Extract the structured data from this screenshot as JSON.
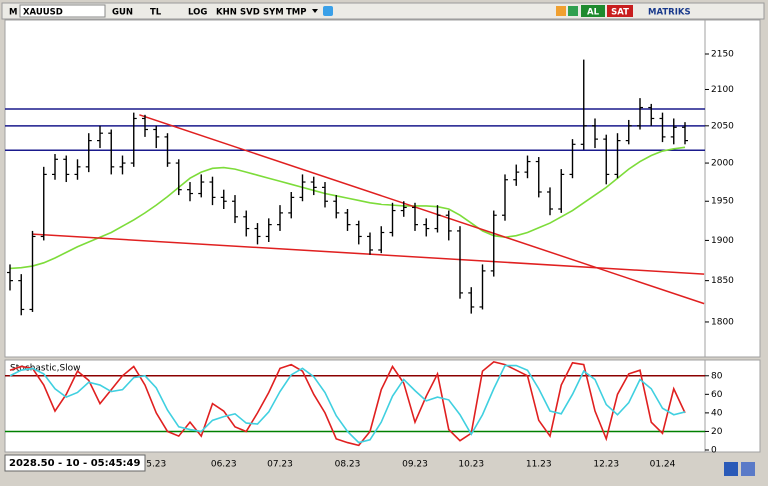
{
  "toolbar": {
    "symbol_prefix": "M",
    "symbol": "XAUUSD",
    "buttons": [
      "GUN",
      "TL",
      "LOG",
      "KHN",
      "SVD",
      "SYM",
      "TMP"
    ],
    "buy": "AL",
    "sell": "SAT",
    "brand": "MATRIKS"
  },
  "status": "2028.50 - 10 - 05:45:49",
  "chart_data": [
    {
      "type": "ohlc",
      "ylog": true,
      "ylim": [
        1761,
        2199
      ],
      "yticks": [
        1800,
        1850,
        1900,
        1950,
        2000,
        2050,
        2100,
        2150
      ],
      "color": "#000000",
      "categories": [
        null,
        null,
        null,
        null,
        null,
        null,
        null,
        null,
        null,
        null,
        null,
        null,
        null,
        "5.23",
        null,
        null,
        null,
        null,
        null,
        "06.23",
        null,
        null,
        null,
        null,
        "07.23",
        null,
        null,
        null,
        null,
        null,
        "08.23",
        null,
        null,
        null,
        null,
        null,
        "09.23",
        null,
        null,
        null,
        null,
        "10.23",
        null,
        null,
        null,
        null,
        null,
        "11.23",
        null,
        null,
        null,
        null,
        null,
        "12.23",
        null,
        null,
        null,
        null,
        "01.24",
        null,
        null
      ],
      "open": [
        1860,
        1850,
        1815,
        1905,
        1985,
        2005,
        1985,
        1995,
        2030,
        2040,
        1995,
        2000,
        2060,
        2045,
        2035,
        2000,
        1965,
        1960,
        1975,
        1955,
        1950,
        1930,
        1915,
        1905,
        1920,
        1935,
        1955,
        1975,
        1968,
        1950,
        1935,
        1920,
        1905,
        1888,
        1910,
        1938,
        1942,
        1920,
        1915,
        1932,
        1912,
        1835,
        1818,
        1862,
        1932,
        1978,
        1988,
        2002,
        1962,
        1940,
        1985,
        2025,
        2050,
        2032,
        1985,
        2030,
        2050,
        2075,
        2060,
        2035,
        2048
      ],
      "high": [
        1870,
        1858,
        1912,
        1995,
        2012,
        2010,
        2005,
        2040,
        2050,
        2045,
        2010,
        2068,
        2065,
        2050,
        2040,
        2005,
        1975,
        1985,
        1982,
        1965,
        1958,
        1938,
        1922,
        1928,
        1945,
        1962,
        1985,
        1982,
        1975,
        1958,
        1940,
        1925,
        1910,
        1918,
        1948,
        1950,
        1948,
        1928,
        1945,
        1938,
        1918,
        1842,
        1870,
        1938,
        1985,
        1998,
        2010,
        2008,
        1968,
        1992,
        2032,
        2142,
        2060,
        2038,
        2040,
        2058,
        2088,
        2080,
        2068,
        2060,
        2055
      ],
      "low": [
        1838,
        1808,
        1812,
        1900,
        1978,
        1975,
        1978,
        1988,
        2020,
        1985,
        1985,
        1995,
        2035,
        2020,
        1995,
        1958,
        1950,
        1955,
        1945,
        1940,
        1922,
        1905,
        1895,
        1898,
        1912,
        1928,
        1950,
        1958,
        1942,
        1928,
        1912,
        1895,
        1882,
        1884,
        1905,
        1930,
        1912,
        1905,
        1910,
        1900,
        1828,
        1810,
        1815,
        1855,
        1925,
        1970,
        1980,
        1955,
        1932,
        1935,
        1980,
        2018,
        2020,
        1972,
        1980,
        2025,
        2045,
        2050,
        2028,
        2025,
        2025
      ],
      "close": [
        1850,
        1815,
        1905,
        1985,
        2005,
        1985,
        1995,
        2030,
        2040,
        1995,
        2000,
        2060,
        2045,
        2035,
        2000,
        1965,
        1960,
        1975,
        1955,
        1950,
        1930,
        1915,
        1905,
        1920,
        1935,
        1955,
        1975,
        1968,
        1950,
        1935,
        1920,
        1905,
        1888,
        1910,
        1938,
        1942,
        1920,
        1915,
        1932,
        1912,
        1835,
        1818,
        1862,
        1932,
        1978,
        1988,
        2002,
        1962,
        1940,
        1985,
        2025,
        2050,
        2032,
        1985,
        2030,
        2050,
        2075,
        2060,
        2035,
        2048,
        2030
      ],
      "moving_average": {
        "color": "#7ddc3a",
        "values": [
          1865,
          1866,
          1868,
          1872,
          1878,
          1885,
          1892,
          1898,
          1904,
          1910,
          1918,
          1926,
          1935,
          1945,
          1956,
          1968,
          1980,
          1988,
          1993,
          1994,
          1992,
          1988,
          1984,
          1980,
          1976,
          1972,
          1968,
          1964,
          1960,
          1957,
          1954,
          1951,
          1948,
          1946,
          1945,
          1944,
          1944,
          1944,
          1943,
          1940,
          1932,
          1922,
          1912,
          1906,
          1904,
          1906,
          1910,
          1916,
          1922,
          1930,
          1938,
          1948,
          1958,
          1968,
          1980,
          1992,
          2002,
          2010,
          2016,
          2019,
          2021
        ]
      },
      "levels": {
        "color": "#1a1a8c",
        "values": [
          2073,
          2050,
          2017
        ]
      },
      "trendlines": [
        {
          "color": "#e02020",
          "x": [
            11.5,
            61.7
          ],
          "values": [
            2065,
            1822
          ]
        },
        {
          "color": "#e02020",
          "x": [
            2,
            61.7
          ],
          "values": [
            1908,
            1858
          ]
        }
      ]
    },
    {
      "type": "line",
      "title": "Stochastic,Slow",
      "ylim": [
        0,
        97
      ],
      "yticks": [
        0,
        20,
        40,
        60,
        80
      ],
      "series": [
        {
          "color": "#e02020",
          "values": [
            86,
            90,
            88,
            70,
            42,
            60,
            85,
            75,
            50,
            65,
            80,
            90,
            70,
            40,
            20,
            15,
            30,
            15,
            50,
            42,
            25,
            20,
            40,
            62,
            88,
            92,
            85,
            60,
            40,
            12,
            8,
            5,
            20,
            65,
            90,
            72,
            30,
            58,
            82,
            22,
            10,
            18,
            85,
            95,
            92,
            86,
            80,
            32,
            15,
            70,
            94,
            92,
            42,
            12,
            60,
            82,
            86,
            30,
            18,
            66,
            40
          ]
        },
        {
          "color": "#40d0e0",
          "values": [
            80,
            86,
            88,
            82,
            66,
            57,
            62,
            73,
            70,
            63,
            65,
            78,
            80,
            67,
            43,
            25,
            22,
            20,
            32,
            36,
            39,
            29,
            28,
            41,
            63,
            81,
            88,
            79,
            62,
            37,
            20,
            8,
            11,
            30,
            58,
            76,
            64,
            53,
            57,
            54,
            38,
            17,
            38,
            66,
            91,
            91,
            86,
            66,
            42,
            39,
            60,
            85,
            76,
            49,
            38,
            51,
            76,
            66,
            45,
            38,
            41
          ]
        }
      ],
      "levels": {
        "values": [
          80,
          20
        ],
        "colors": [
          "#8b0000",
          "#008000"
        ]
      }
    }
  ]
}
